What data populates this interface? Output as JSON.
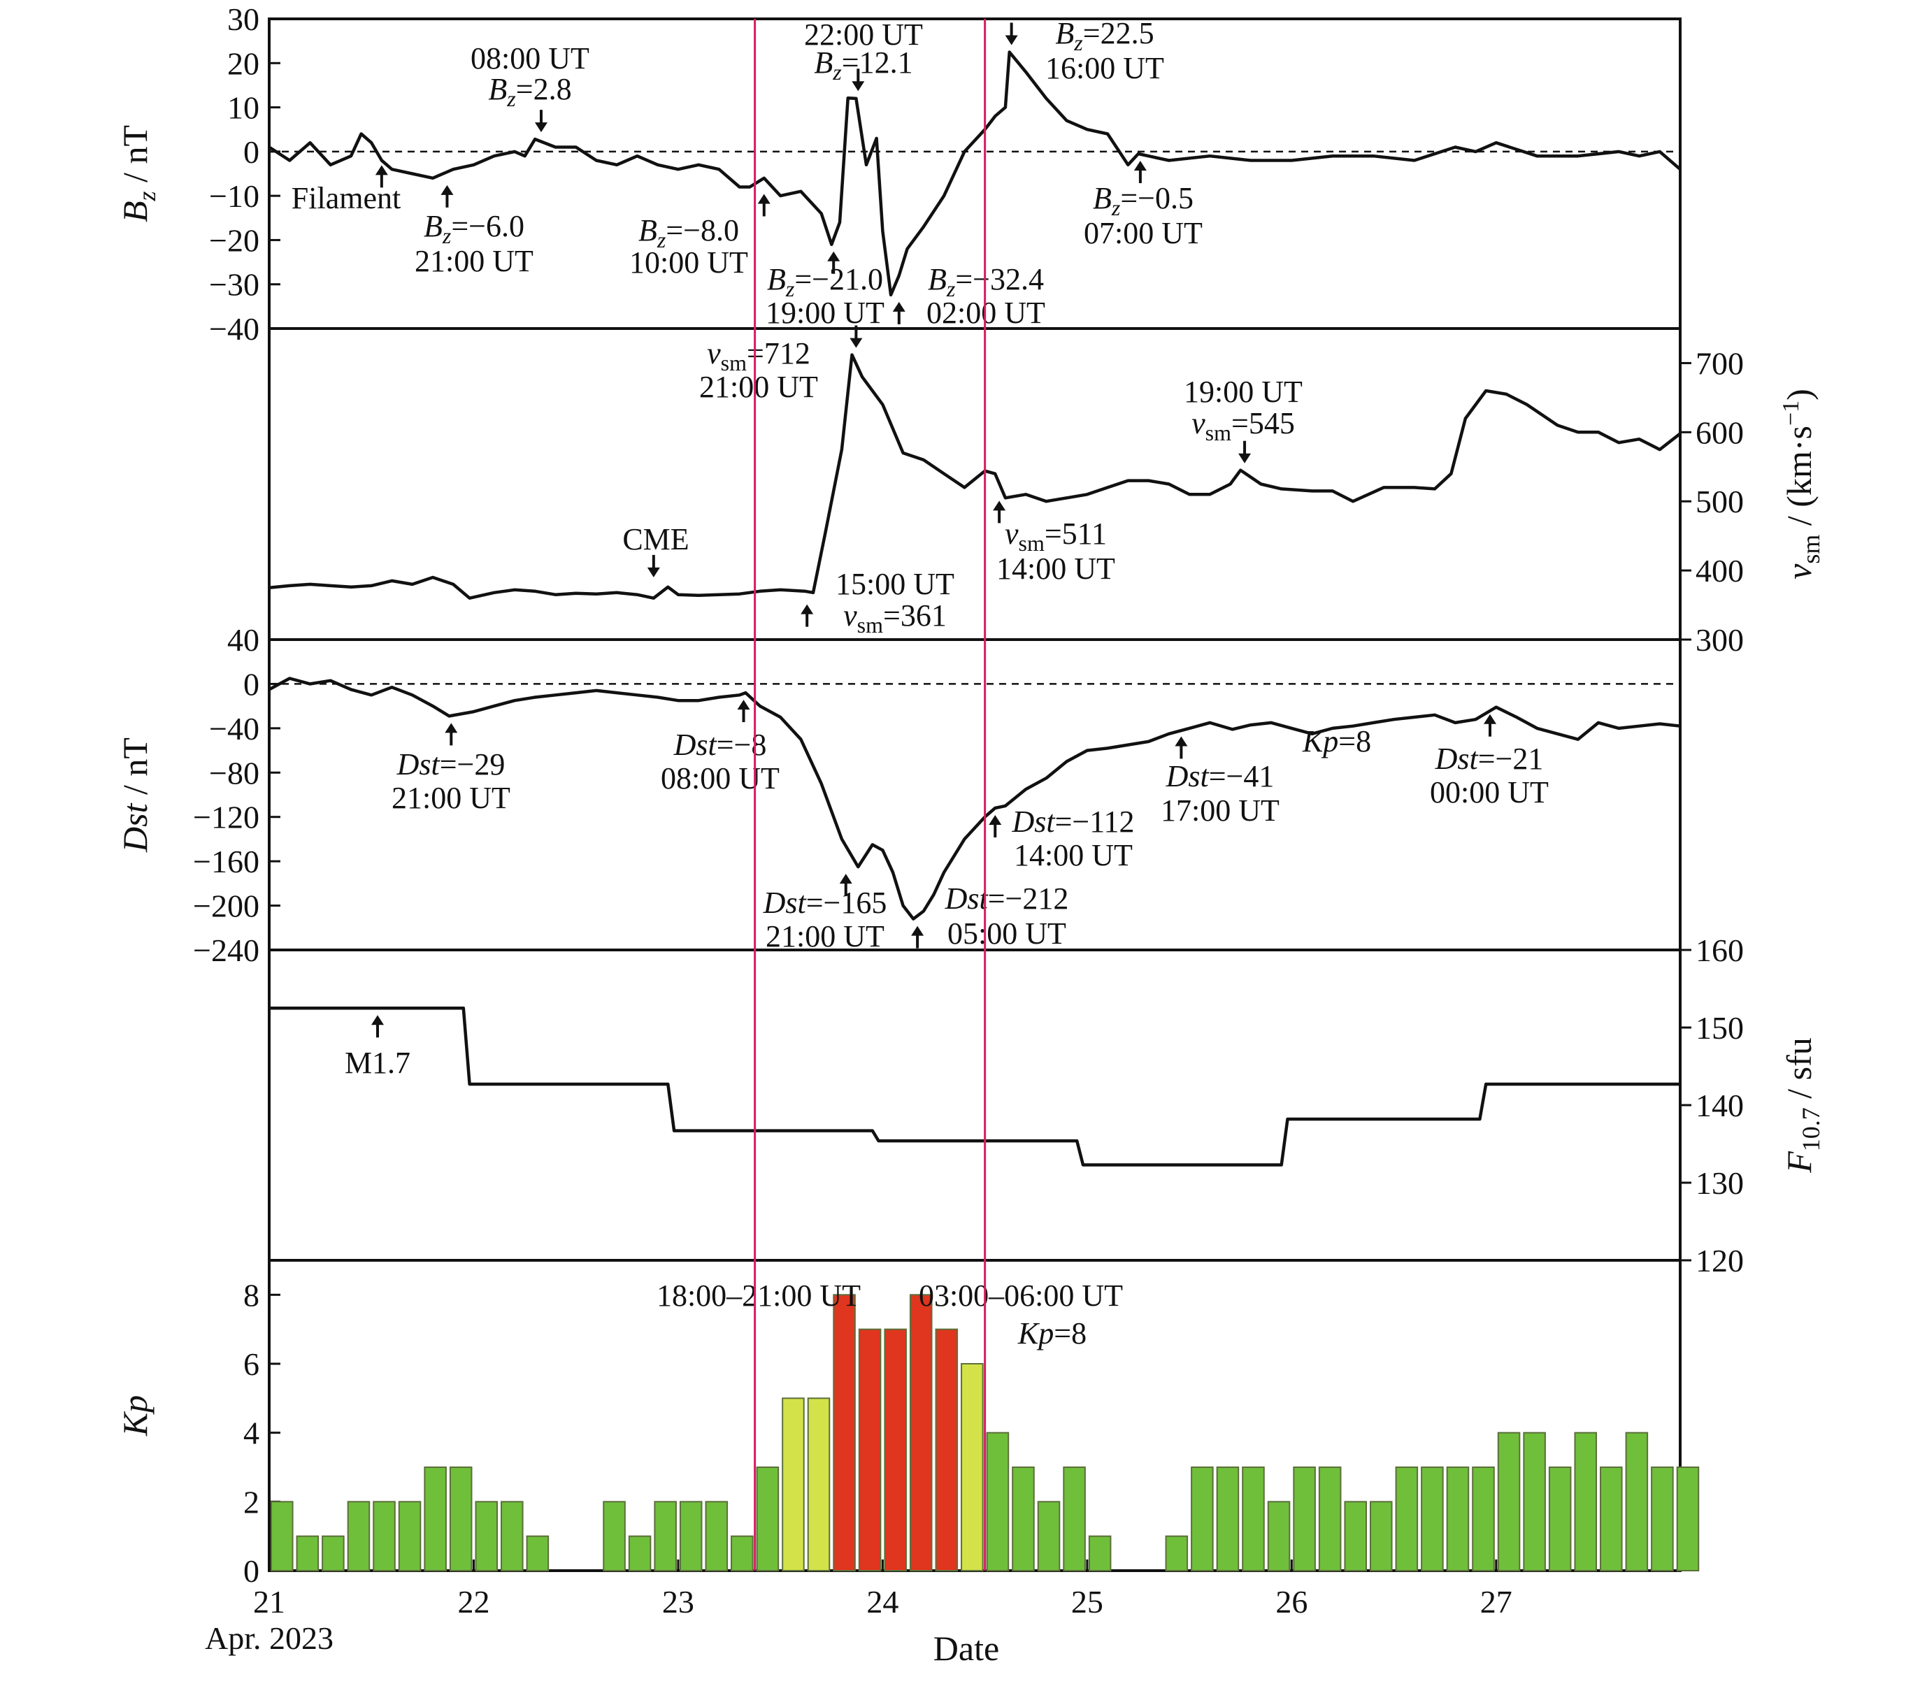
{
  "chart_data": {
    "type": "line",
    "x_range_days": [
      21,
      27.9
    ],
    "x_ticks": [
      21,
      22,
      23,
      24,
      25,
      26,
      27
    ],
    "x_tick_labels": [
      "21",
      "22",
      "23",
      "24",
      "25",
      "26",
      "27"
    ],
    "x_origin_label": "Apr. 2023",
    "xlabel": "Date",
    "event_lines_days": [
      23.375,
      24.5
    ],
    "panels": [
      {
        "id": "bz",
        "ylabel": "Bz / nT",
        "ylabel_main": "B",
        "ylabel_sub": "z",
        "ylabel_unit": " / nT",
        "axis_side": "left",
        "ylim": [
          -40,
          30
        ],
        "yticks": [
          30,
          20,
          10,
          0,
          -10,
          -20,
          -30,
          -40
        ],
        "ytick_labels": [
          "30",
          "20",
          "10",
          "0",
          "−10",
          "−20",
          "−30",
          "−40"
        ],
        "zero_line": 0,
        "series": {
          "x": [
            21.0,
            21.1,
            21.2,
            21.3,
            21.4,
            21.45,
            21.5,
            21.55,
            21.6,
            21.7,
            21.8,
            21.9,
            22.0,
            22.1,
            22.2,
            22.25,
            22.3,
            22.4,
            22.5,
            22.6,
            22.7,
            22.8,
            22.9,
            23.0,
            23.1,
            23.2,
            23.3,
            23.35,
            23.42,
            23.5,
            23.6,
            23.7,
            23.75,
            23.79,
            23.83,
            23.87,
            23.92,
            23.97,
            24.0,
            24.04,
            24.08,
            24.12,
            24.2,
            24.3,
            24.4,
            24.5,
            24.55,
            24.6,
            24.62,
            24.7,
            24.8,
            24.9,
            25.0,
            25.1,
            25.2,
            25.25,
            25.3,
            25.4,
            25.6,
            25.8,
            26.0,
            26.2,
            26.4,
            26.6,
            26.8,
            26.9,
            27.0,
            27.2,
            27.4,
            27.6,
            27.7,
            27.8,
            27.9
          ],
          "y": [
            1,
            -2,
            2,
            -3,
            -1,
            4,
            2,
            -2,
            -4,
            -5,
            -6,
            -4,
            -3,
            -1,
            0,
            -1,
            2.8,
            1,
            1,
            -2,
            -3,
            -1,
            -3,
            -4,
            -3,
            -4,
            -8,
            -8,
            -6,
            -10,
            -9,
            -14,
            -21,
            -16,
            12.1,
            12,
            -3,
            3,
            -18,
            -32.4,
            -28,
            -22,
            -17,
            -10,
            0,
            5,
            8,
            10,
            22.5,
            18,
            12,
            7,
            5,
            4,
            -3,
            -0.5,
            -1,
            -2,
            -1,
            -2,
            -2,
            -1,
            -1,
            -2,
            1,
            0,
            2,
            -1,
            -1,
            0,
            -1,
            0,
            -4
          ]
        },
        "annotations": [
          {
            "text_lines": [
              "Filament"
            ],
            "day": 21.55,
            "value": -1.5,
            "dir": "up"
          },
          {
            "text_lines": [
              "08:00 UT",
              "Bz=2.8"
            ],
            "day": 22.33,
            "value": 2.8,
            "dir": "down"
          },
          {
            "text_lines": [
              "Bz=−6.0",
              "21:00 UT"
            ],
            "day": 21.87,
            "value": -6.0,
            "dir": "up"
          },
          {
            "text_lines": [
              "Bz=−8.0",
              "10:00 UT"
            ],
            "day": 23.42,
            "value": -8.0,
            "dir": "up"
          },
          {
            "text_lines": [
              "22:00 UT",
              "Bz=12.1"
            ],
            "day": 23.88,
            "value": 12.1,
            "dir": "down"
          },
          {
            "text_lines": [
              "Bz=−21.0",
              "19:00 UT"
            ],
            "day": 23.76,
            "value": -21.0,
            "dir": "up"
          },
          {
            "text_lines": [
              "Bz=−32.4",
              "02:00 UT"
            ],
            "day": 24.08,
            "value": -32.4,
            "dir": "up"
          },
          {
            "text_lines": [
              "Bz=22.5",
              "16:00 UT"
            ],
            "day": 24.63,
            "value": 22.5,
            "dir": "down"
          },
          {
            "text_lines": [
              "Bz=−0.5",
              "07:00 UT"
            ],
            "day": 25.26,
            "value": -0.5,
            "dir": "up"
          }
        ]
      },
      {
        "id": "vsw",
        "ylabel": "vsm / (km·s−1)",
        "ylabel_main": "v",
        "ylabel_sub": "sm",
        "ylabel_unit": " / (km·s",
        "ylabel_sup": "−1",
        "ylabel_close": ")",
        "axis_side": "right",
        "ylim": [
          300,
          750
        ],
        "yticks": [
          300,
          400,
          500,
          600,
          700
        ],
        "ytick_labels": [
          "300",
          "400",
          "500",
          "600",
          "700"
        ],
        "series": {
          "x": [
            21.0,
            21.1,
            21.2,
            21.3,
            21.4,
            21.5,
            21.6,
            21.7,
            21.8,
            21.9,
            21.98,
            22.1,
            22.2,
            22.3,
            22.4,
            22.5,
            22.6,
            22.7,
            22.8,
            22.88,
            22.95,
            23.0,
            23.1,
            23.2,
            23.3,
            23.4,
            23.5,
            23.62,
            23.66,
            23.72,
            23.8,
            23.85,
            23.9,
            24.0,
            24.1,
            24.2,
            24.3,
            24.4,
            24.5,
            24.55,
            24.6,
            24.7,
            24.8,
            24.9,
            25.0,
            25.1,
            25.2,
            25.3,
            25.4,
            25.5,
            25.6,
            25.7,
            25.75,
            25.85,
            25.95,
            26.1,
            26.2,
            26.3,
            26.45,
            26.6,
            26.7,
            26.78,
            26.85,
            26.95,
            27.05,
            27.15,
            27.3,
            27.4,
            27.5,
            27.6,
            27.7,
            27.8,
            27.9
          ],
          "y": [
            375,
            378,
            380,
            378,
            376,
            378,
            385,
            380,
            390,
            380,
            360,
            368,
            372,
            370,
            365,
            367,
            366,
            368,
            365,
            360,
            376,
            365,
            364,
            365,
            366,
            370,
            372,
            370,
            368,
            455,
            575,
            712,
            680,
            640,
            570,
            560,
            540,
            520,
            544,
            540,
            505,
            510,
            500,
            505,
            510,
            520,
            530,
            530,
            525,
            510,
            510,
            525,
            545,
            525,
            518,
            515,
            515,
            500,
            520,
            520,
            518,
            540,
            620,
            660,
            655,
            640,
            610,
            600,
            600,
            585,
            590,
            575,
            598
          ]
        },
        "annotations": [
          {
            "text_lines": [
              "vsm=712",
              "21:00 UT"
            ],
            "day": 23.87,
            "value": 712,
            "dir": "down"
          },
          {
            "text_lines": [
              "19:00 UT",
              "vsm=545"
            ],
            "day": 25.77,
            "value": 545,
            "dir": "down"
          },
          {
            "text_lines": [
              "CME"
            ],
            "day": 22.88,
            "value": 380,
            "dir": "down"
          },
          {
            "text_lines": [
              "vsm=511",
              "14:00 UT"
            ],
            "day": 24.57,
            "value": 511,
            "dir": "up"
          },
          {
            "text_lines": [
              "15:00 UT",
              "vsm=361"
            ],
            "day": 23.63,
            "value": 361,
            "dir": "up"
          }
        ]
      },
      {
        "id": "dst",
        "ylabel": "Dst / nT",
        "ylabel_main": "Dst",
        "ylabel_unit": " / nT",
        "axis_side": "left",
        "ylim": [
          -240,
          40
        ],
        "yticks": [
          40,
          0,
          -40,
          -80,
          -120,
          -160,
          -200,
          -240
        ],
        "ytick_labels": [
          "40",
          "0",
          "−40",
          "−80",
          "−120",
          "−160",
          "−200",
          "−240"
        ],
        "zero_line": 0,
        "series": {
          "x": [
            21.0,
            21.1,
            21.2,
            21.3,
            21.4,
            21.5,
            21.6,
            21.7,
            21.8,
            21.88,
            22.0,
            22.1,
            22.2,
            22.3,
            22.4,
            22.5,
            22.6,
            22.7,
            22.8,
            22.9,
            23.0,
            23.1,
            23.2,
            23.3,
            23.33,
            23.4,
            23.5,
            23.6,
            23.7,
            23.8,
            23.88,
            23.95,
            24.0,
            24.05,
            24.1,
            24.15,
            24.2,
            24.25,
            24.3,
            24.4,
            24.5,
            24.55,
            24.6,
            24.7,
            24.8,
            24.9,
            25.0,
            25.1,
            25.2,
            25.3,
            25.4,
            25.5,
            25.6,
            25.71,
            25.8,
            25.9,
            26.0,
            26.1,
            26.2,
            26.3,
            26.4,
            26.5,
            26.6,
            26.7,
            26.8,
            26.9,
            27.0,
            27.1,
            27.2,
            27.3,
            27.4,
            27.5,
            27.6,
            27.7,
            27.8,
            27.9
          ],
          "y": [
            -5,
            5,
            0,
            3,
            -5,
            -10,
            -3,
            -10,
            -20,
            -29,
            -25,
            -20,
            -15,
            -12,
            -10,
            -8,
            -6,
            -8,
            -10,
            -12,
            -15,
            -15,
            -12,
            -10,
            -8,
            -20,
            -30,
            -50,
            -90,
            -140,
            -165,
            -145,
            -150,
            -170,
            -200,
            -212,
            -205,
            -190,
            -170,
            -140,
            -120,
            -112,
            -110,
            -95,
            -85,
            -70,
            -60,
            -58,
            -55,
            -52,
            -45,
            -40,
            -35,
            -41,
            -37,
            -35,
            -40,
            -45,
            -40,
            -38,
            -35,
            -32,
            -30,
            -28,
            -35,
            -32,
            -21,
            -30,
            -40,
            -45,
            -50,
            -35,
            -40,
            -38,
            -36,
            -38
          ]
        },
        "annotations": [
          {
            "text_lines": [
              "Dst=−29",
              "21:00 UT"
            ],
            "day": 21.89,
            "value": -29,
            "dir": "up"
          },
          {
            "text_lines": [
              "Dst=−8",
              "08:00 UT"
            ],
            "day": 23.32,
            "value": -8,
            "dir": "up"
          },
          {
            "text_lines": [
              "Dst=−165",
              "21:00 UT"
            ],
            "day": 23.82,
            "value": -165,
            "dir": "up"
          },
          {
            "text_lines": [
              "Dst=−212",
              "05:00 UT"
            ],
            "day": 24.17,
            "value": -212,
            "dir": "up"
          },
          {
            "text_lines": [
              "Dst=−112",
              "14:00 UT"
            ],
            "day": 24.55,
            "value": -112,
            "dir": "up"
          },
          {
            "text_lines": [
              "Dst=−41",
              "17:00 UT"
            ],
            "day": 25.46,
            "value": -41,
            "dir": "up"
          },
          {
            "text_lines": [
              "Dst=−21",
              "00:00 UT"
            ],
            "day": 26.97,
            "value": -21,
            "dir": "up"
          }
        ]
      },
      {
        "id": "f107",
        "ylabel": "F10.7 / sfu",
        "ylabel_main": "F",
        "ylabel_sub": "10.7",
        "ylabel_unit": " / sfu",
        "axis_side": "right",
        "ylim": [
          120,
          160
        ],
        "yticks": [
          120,
          130,
          140,
          150,
          160
        ],
        "ytick_labels": [
          "120",
          "130",
          "140",
          "150",
          "160"
        ],
        "series_step": {
          "x": [
            21.0,
            21.95,
            21.98,
            22.95,
            22.98,
            23.95,
            23.98,
            24.95,
            24.98,
            25.95,
            25.98,
            26.92,
            26.95,
            27.9
          ],
          "y": [
            152.5,
            152.5,
            142.7,
            142.7,
            136.7,
            136.7,
            135.4,
            135.4,
            132.3,
            132.3,
            138.2,
            138.2,
            142.7,
            142.7
          ]
        },
        "annotations": [
          {
            "text_lines": [
              "M1.7"
            ],
            "day": 21.53,
            "value": 152.5,
            "dir": "up"
          }
        ]
      },
      {
        "id": "kp",
        "ylabel": "Kp",
        "ylabel_main": "Kp",
        "axis_side": "left",
        "ylim": [
          0,
          9
        ],
        "yticks": [
          0,
          2,
          4,
          6,
          8
        ],
        "ytick_labels": [
          "0",
          "2",
          "4",
          "6",
          "8"
        ],
        "kp_values": [
          2,
          1,
          1,
          2,
          2,
          2,
          3,
          3,
          2,
          2,
          1,
          0,
          0,
          2,
          1,
          2,
          2,
          2,
          1,
          3,
          5,
          5,
          8,
          7,
          7,
          8,
          7,
          6,
          4,
          3,
          2,
          3,
          1,
          0,
          0,
          1,
          3,
          3,
          3,
          2,
          3,
          3,
          2,
          2,
          3,
          3,
          3,
          3,
          4,
          4,
          3,
          4,
          3,
          4,
          3,
          3
        ],
        "kp_colors": {
          "green": "#6fbf3b",
          "yellow": "#d4e24a",
          "red": "#e0351e",
          "edge": "#5c6f3a"
        },
        "annotations_text": [
          {
            "lines": [
              "18:00–21:00 UT",
              "Kp=8"
            ]
          },
          {
            "lines": [
              "03:00–06:00 UT",
              "Kp=8"
            ]
          }
        ]
      }
    ]
  }
}
